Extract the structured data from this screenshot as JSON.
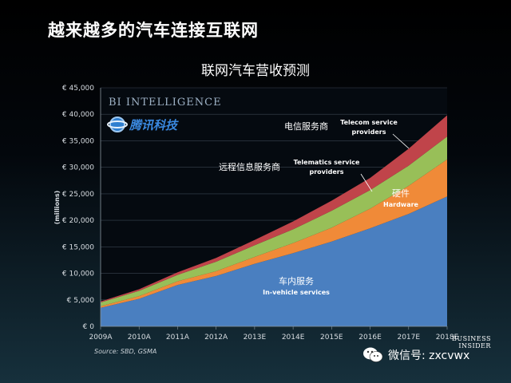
{
  "slide_title": "越来越多的汽车连接互联网",
  "chart_title": "联网汽车营收预测",
  "source": "Source: SBD, GSMA",
  "wechat_label": "微信号: zxcvwx",
  "bi_logo_line1": "BUSINESS",
  "bi_logo_line2": "INSIDER",
  "chart_data": {
    "type": "area",
    "stacked": true,
    "title": "",
    "ylabel": "(millions)",
    "xlabel": "",
    "ylim": [
      0,
      45000
    ],
    "yticks": [
      "€ 0",
      "€ 5,000",
      "€ 10,000",
      "€ 15,000",
      "€ 20,000",
      "€ 25,000",
      "€ 30,000",
      "€ 35,000",
      "€ 40,000",
      "€ 45,000"
    ],
    "categories": [
      "2009A",
      "2010A",
      "2011A",
      "2012A",
      "2013E",
      "2014E",
      "2015E",
      "2016E",
      "2017E",
      "2018E"
    ],
    "series": [
      {
        "name": "车内服务 In-vehicle services",
        "color": "#4a7fc0",
        "values": [
          3500,
          5200,
          7800,
          9500,
          11800,
          13800,
          16000,
          18500,
          21200,
          24500
        ]
      },
      {
        "name": "硬件 Hardware",
        "color": "#f08a38",
        "values": [
          300,
          500,
          700,
          900,
          1300,
          1900,
          2600,
          3700,
          5300,
          7000
        ]
      },
      {
        "name": "远程信息服务商 Telematics service providers",
        "color": "#98bf58",
        "values": [
          700,
          1000,
          1200,
          1800,
          2200,
          2600,
          3200,
          3500,
          3800,
          4300
        ]
      },
      {
        "name": "电信服务商 Telecom service providers",
        "color": "#c0444a",
        "values": [
          200,
          300,
          500,
          700,
          1000,
          1500,
          1900,
          2300,
          3200,
          4000
        ]
      }
    ],
    "annotations": [
      {
        "cn": "车内服务",
        "en": "In-vehicle services"
      },
      {
        "cn": "硬件",
        "en": "Hardware"
      },
      {
        "cn": "远程信息服务商",
        "en": "Telematics service providers"
      },
      {
        "cn": "电信服务商",
        "en": "Telecom service providers"
      }
    ],
    "watermark_1": "BI INTELLIGENCE",
    "watermark_2": "腾讯科技"
  }
}
